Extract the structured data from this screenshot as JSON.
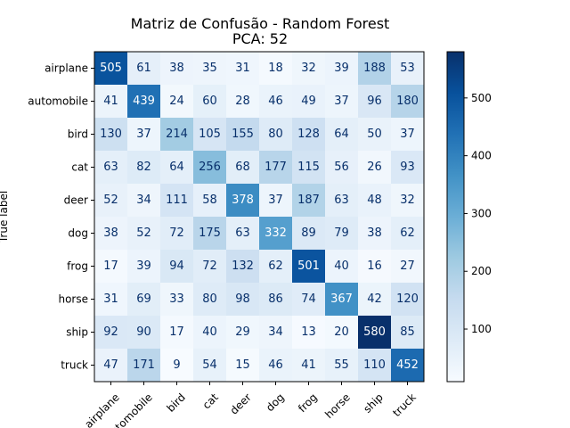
{
  "chart_data": {
    "type": "heatmap",
    "title": "Matriz de Confusão - Random Forest",
    "subtitle": "PCA: 52",
    "xlabel": "",
    "ylabel": "True label",
    "categories": [
      "airplane",
      "automobile",
      "bird",
      "cat",
      "deer",
      "dog",
      "frog",
      "horse",
      "ship",
      "truck"
    ],
    "matrix": [
      [
        505,
        61,
        38,
        35,
        31,
        18,
        32,
        39,
        188,
        53
      ],
      [
        41,
        439,
        24,
        60,
        28,
        46,
        49,
        37,
        96,
        180
      ],
      [
        130,
        37,
        214,
        105,
        155,
        80,
        128,
        64,
        50,
        37
      ],
      [
        63,
        82,
        64,
        256,
        68,
        177,
        115,
        56,
        26,
        93
      ],
      [
        52,
        34,
        111,
        58,
        378,
        37,
        187,
        63,
        48,
        32
      ],
      [
        38,
        52,
        72,
        175,
        63,
        332,
        89,
        79,
        38,
        62
      ],
      [
        17,
        39,
        94,
        72,
        132,
        62,
        501,
        40,
        16,
        27
      ],
      [
        31,
        69,
        33,
        80,
        98,
        86,
        74,
        367,
        42,
        120
      ],
      [
        92,
        90,
        17,
        40,
        29,
        34,
        13,
        20,
        580,
        85
      ],
      [
        47,
        171,
        9,
        54,
        15,
        46,
        41,
        55,
        110,
        452
      ]
    ],
    "colormap": "Blues",
    "vmin": 9,
    "vmax": 580,
    "colorbar_ticks": [
      100,
      200,
      300,
      400,
      500
    ],
    "legend": "colorbar-right"
  }
}
